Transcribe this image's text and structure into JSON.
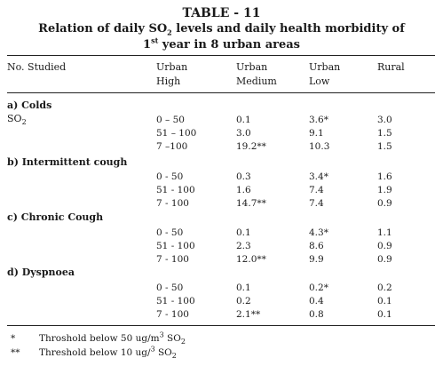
{
  "title": {
    "line1": "TABLE - 11",
    "line2_pre": "Relation of daily SO",
    "line2_sub": "2",
    "line2_post": " levels and daily health morbidity of",
    "line3_pre": "1",
    "line3_sup": "st",
    "line3_post": " year in 8 urban areas"
  },
  "headers": {
    "col0": "No. Studied",
    "col1_a": "Urban",
    "col1_b": "High",
    "col2_a": "Urban",
    "col2_b": "Medium",
    "col3_a": "Urban",
    "col3_b": "Low",
    "col4": "Rural"
  },
  "sections": [
    {
      "label": "a) Colds",
      "sub_label": "SO",
      "sub_sub": "2",
      "rows": [
        [
          "0 – 50",
          "0.1",
          "3.6*",
          "3.0"
        ],
        [
          "51 – 100",
          "3.0",
          "9.1",
          "1.5"
        ],
        [
          "7 –100",
          "19.2**",
          "10.3",
          "1.5"
        ]
      ]
    },
    {
      "label": "b) Intermittent cough",
      "rows": [
        [
          "0 - 50",
          "0.3",
          "3.4*",
          "1.6"
        ],
        [
          "51 - 100",
          "1.6",
          "7.4",
          "1.9"
        ],
        [
          "7 - 100",
          "14.7**",
          "7.4",
          "0.9"
        ]
      ]
    },
    {
      "label": "c) Chronic Cough",
      "rows": [
        [
          "0 - 50",
          "0.1",
          "4.3*",
          "1.1"
        ],
        [
          "51 - 100",
          "2.3",
          "8.6",
          "0.9"
        ],
        [
          "7 - 100",
          "12.0**",
          "9.9",
          "0.9"
        ]
      ]
    },
    {
      "label": "d) Dyspnoea",
      "rows": [
        [
          "0 - 50",
          "0.1",
          "0.2*",
          "0.2"
        ],
        [
          "51 - 100",
          "0.2",
          "0.4",
          "0.1"
        ],
        [
          "7 - 100",
          "2.1**",
          "0.8",
          "0.1"
        ]
      ]
    }
  ],
  "footnotes": [
    {
      "mark": "*",
      "text_pre": "Throshold below 50 ug/m",
      "sup": "3",
      "text_mid": " SO",
      "sub": "2"
    },
    {
      "mark": "**",
      "text_pre": "Threshold below 10 ug/",
      "sup": "3",
      "text_mid": " SO",
      "sub": "2"
    }
  ]
}
